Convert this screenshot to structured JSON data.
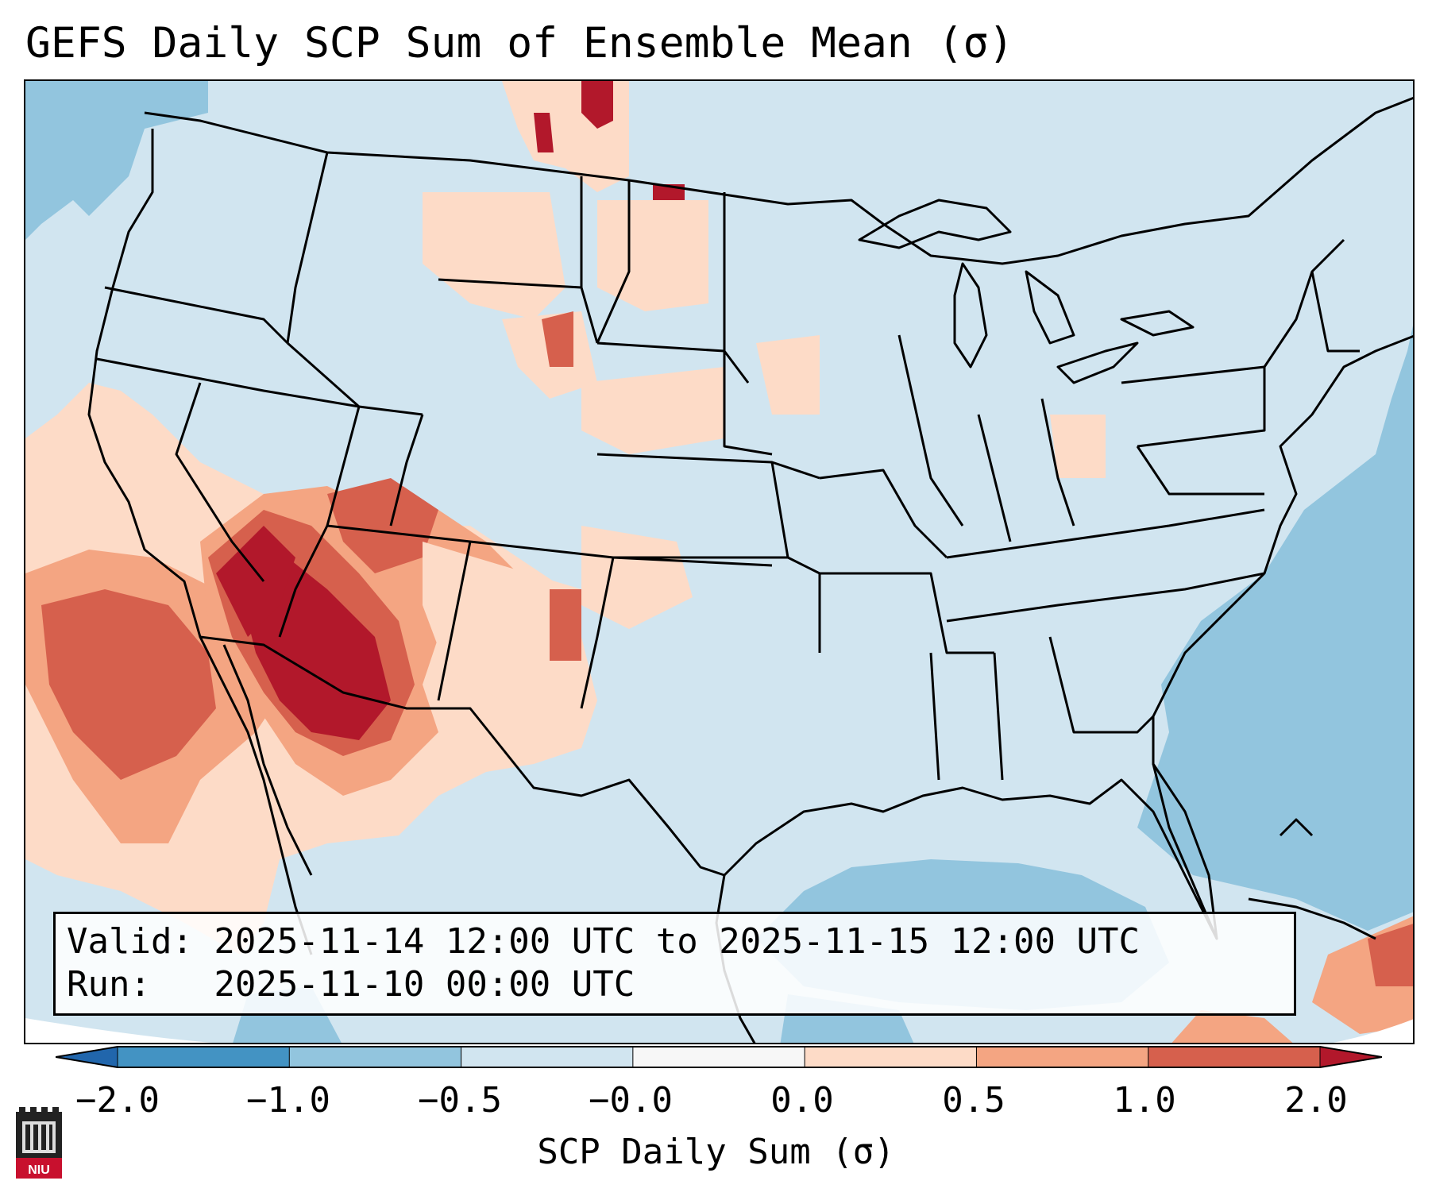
{
  "title": "GEFS Daily SCP Sum of Ensemble Mean (σ)",
  "info_box": {
    "valid_line": "Valid: 2025-11-14 12:00 UTC to 2025-11-15 12:00 UTC",
    "run_line": "Run:   2025-11-10 00:00 UTC"
  },
  "colorbar": {
    "label": "SCP Daily Sum (σ)",
    "tick_labels": [
      "−2.0",
      "−1.0",
      "−0.5",
      "−0.0",
      "0.0",
      "0.5",
      "1.0",
      "2.0"
    ],
    "bins": [
      {
        "range": "< -2.0",
        "color": "#2166ac"
      },
      {
        "range": "-2.0 to -1.0",
        "color": "#4393c3"
      },
      {
        "range": "-1.0 to -0.5",
        "color": "#92c5de"
      },
      {
        "range": "-0.5 to -0.0",
        "color": "#d1e5f0"
      },
      {
        "range": "-0.0 to 0.0",
        "color": "#f7f7f7"
      },
      {
        "range": "0.0 to 0.5",
        "color": "#fddbc7"
      },
      {
        "range": "0.5 to 1.0",
        "color": "#f4a582"
      },
      {
        "range": "1.0 to 2.0",
        "color": "#d6604d"
      },
      {
        "range": "> 2.0",
        "color": "#b2182b"
      }
    ]
  },
  "logo": {
    "text": "NIU",
    "color": "#c8102e"
  }
}
